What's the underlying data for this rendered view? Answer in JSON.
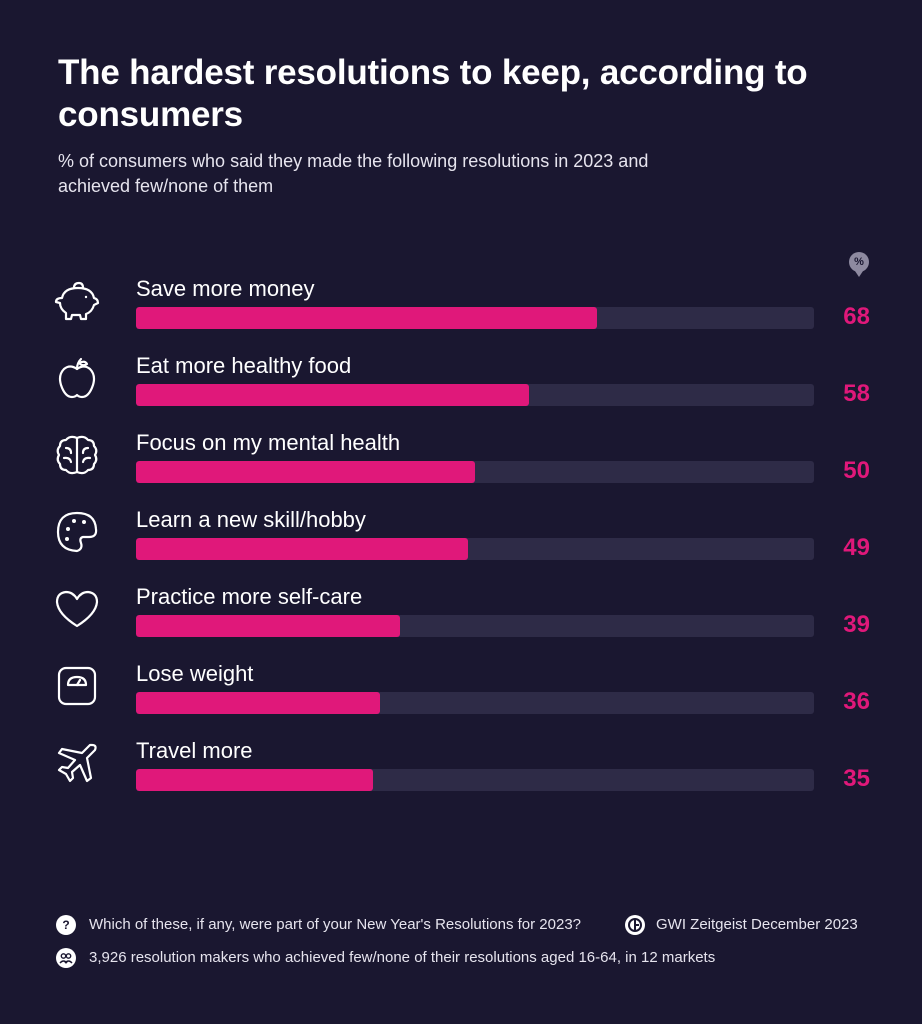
{
  "header": {
    "title": "The hardest resolutions to keep, according to consumers",
    "subtitle": "% of consumers who said they made the following resolutions in 2023 and achieved few/none of them",
    "unit_badge": "%"
  },
  "chart_data": {
    "type": "bar",
    "orientation": "horizontal",
    "title": "The hardest resolutions to keep, according to consumers",
    "subtitle": "% of consumers who said they made the following resolutions in 2023 and achieved few/none of them",
    "xlim": [
      0,
      100
    ],
    "grid": false,
    "bar_color": "#e0187a",
    "track_color": "#2e2b47",
    "categories": [
      "Save more money",
      "Eat more healthy food",
      "Focus on my mental health",
      "Learn a new skill/hobby",
      "Practice more self-care",
      "Lose weight",
      "Travel more"
    ],
    "values": [
      68,
      58,
      50,
      49,
      39,
      36,
      35
    ],
    "icons": [
      "piggy-bank-icon",
      "apple-icon",
      "brain-icon",
      "palette-icon",
      "heart-icon",
      "scale-icon",
      "airplane-icon"
    ]
  },
  "footer": {
    "question_icon": "?",
    "question": "Which of these, if any, were part of your New Year's Resolutions for 2023?",
    "source": "GWI Zeitgeist December 2023",
    "base": "3,926 resolution makers who achieved few/none of their resolutions aged 16-64, in 12 markets"
  }
}
